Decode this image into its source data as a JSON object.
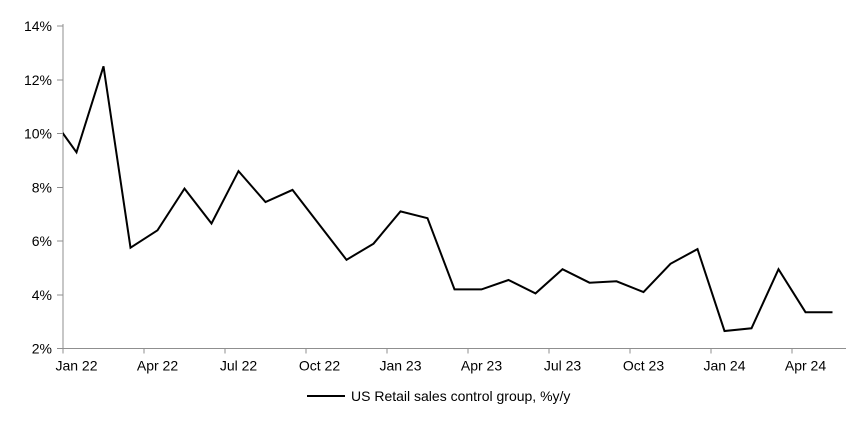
{
  "chart_data": {
    "type": "line",
    "title": "",
    "xlabel": "",
    "ylabel": "",
    "ylim": [
      2,
      14
    ],
    "grid": false,
    "background_color": "#ffffff",
    "axis_color": "#8f8f8f",
    "tick_label_color": "#000000",
    "legend_position": "bottom",
    "x": [
      "Dec 21",
      "Jan 22",
      "Feb 22",
      "Mar 22",
      "Apr 22",
      "May 22",
      "Jun 22",
      "Jul 22",
      "Aug 22",
      "Sep 22",
      "Oct 22",
      "Nov 22",
      "Dec 22",
      "Jan 23",
      "Feb 23",
      "Mar 23",
      "Apr 23",
      "May 23",
      "Jun 23",
      "Jul 23",
      "Aug 23",
      "Sep 23",
      "Oct 23",
      "Nov 23",
      "Dec 23",
      "Jan 24",
      "Feb 24",
      "Mar 24",
      "Apr 24",
      "May 24"
    ],
    "first_point_clipped_at_axis": true,
    "series": [
      {
        "name": "US Retail sales control group, %y/y",
        "color": "#000000",
        "line_width": 2,
        "values": [
          10.7,
          9.3,
          12.5,
          5.75,
          6.4,
          7.95,
          6.65,
          8.6,
          7.45,
          7.9,
          6.6,
          5.3,
          5.9,
          7.1,
          6.85,
          4.2,
          4.2,
          4.55,
          4.05,
          4.95,
          4.45,
          4.5,
          4.1,
          5.15,
          5.7,
          2.65,
          2.75,
          4.95,
          3.35,
          3.35
        ]
      }
    ],
    "ytick_labels": [
      "2%",
      "4%",
      "6%",
      "8%",
      "10%",
      "12%",
      "14%"
    ],
    "xtick_labels": [
      "Jan 22",
      "Apr 22",
      "Jul 22",
      "Oct 22",
      "Jan 23",
      "Apr 23",
      "Jul 23",
      "Oct 23",
      "Jan 24",
      "Apr 24"
    ],
    "xtick_interval_months": 3
  },
  "legend": {
    "label": "US Retail sales control group, %y/y"
  }
}
